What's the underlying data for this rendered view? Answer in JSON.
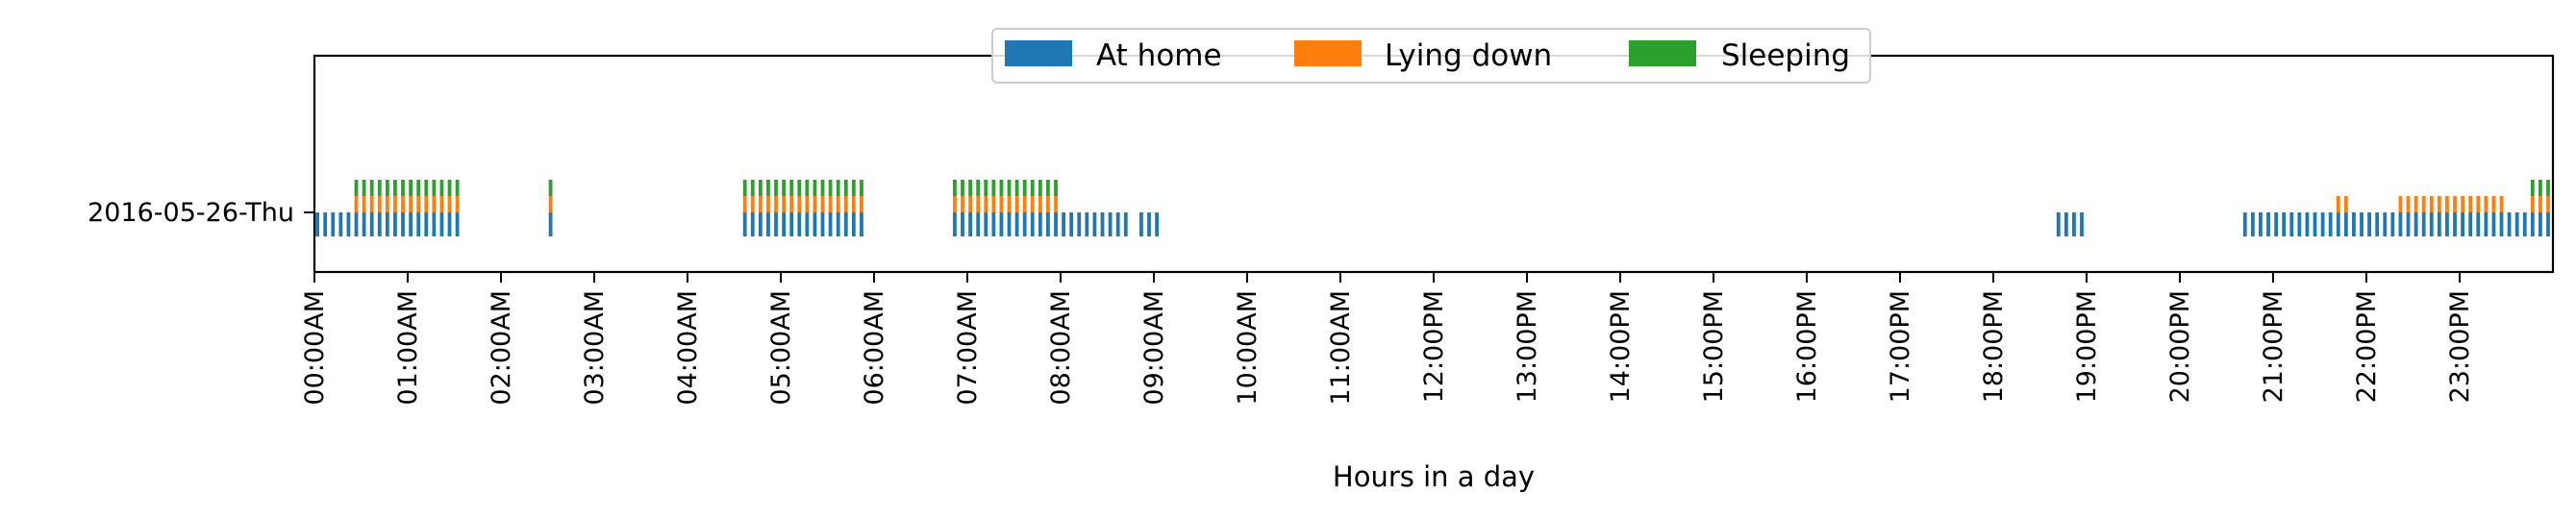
{
  "chart_data": {
    "type": "event-strip",
    "title": "",
    "xlabel": "Hours in a day",
    "ylabel": "",
    "xlim_minutes": [
      0,
      1440
    ],
    "row_label": "2016-05-26-Thu",
    "x_tick_labels": [
      "00:00AM",
      "01:00AM",
      "02:00AM",
      "03:00AM",
      "04:00AM",
      "05:00AM",
      "06:00AM",
      "07:00AM",
      "08:00AM",
      "09:00AM",
      "10:00AM",
      "11:00AM",
      "12:00PM",
      "13:00PM",
      "14:00PM",
      "15:00PM",
      "16:00PM",
      "17:00PM",
      "18:00PM",
      "19:00PM",
      "20:00PM",
      "21:00PM",
      "22:00PM",
      "23:00PM"
    ],
    "minute_resolution": 5,
    "legend_position": "top-center",
    "grid": false,
    "series": [
      {
        "name": "At home",
        "color": "#1f77b4",
        "intervals_minutes": [
          [
            0,
            95
          ],
          [
            150,
            155
          ],
          [
            275,
            355
          ],
          [
            410,
            525
          ],
          [
            530,
            545
          ],
          [
            1120,
            1140
          ],
          [
            1240,
            1440
          ]
        ]
      },
      {
        "name": "Lying down",
        "color": "#ff7f0e",
        "intervals_minutes": [
          [
            25,
            95
          ],
          [
            150,
            155
          ],
          [
            275,
            355
          ],
          [
            410,
            480
          ],
          [
            1300,
            1310
          ],
          [
            1340,
            1410
          ],
          [
            1425,
            1440
          ]
        ]
      },
      {
        "name": "Sleeping",
        "color": "#2ca02c",
        "intervals_minutes": [
          [
            25,
            95
          ],
          [
            150,
            155
          ],
          [
            275,
            355
          ],
          [
            410,
            480
          ],
          [
            1425,
            1440
          ]
        ]
      }
    ]
  }
}
